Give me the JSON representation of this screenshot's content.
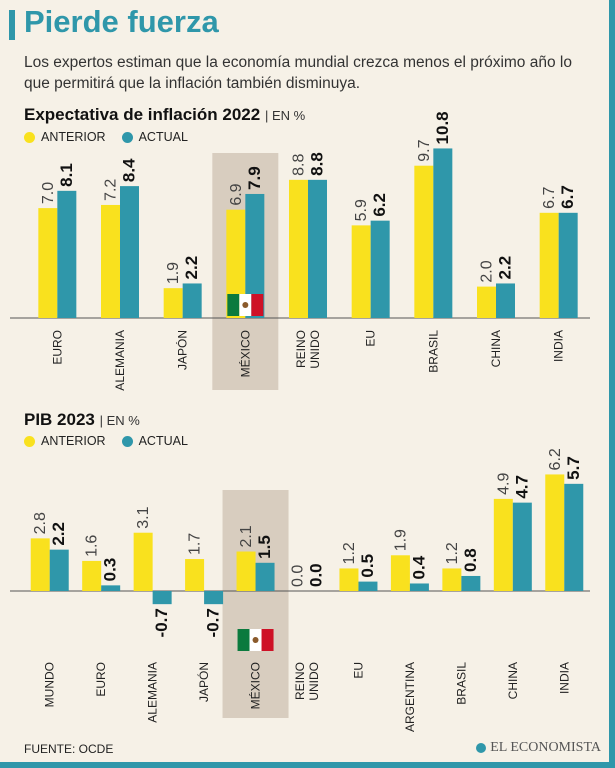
{
  "title": "Pierde fuerza",
  "subtitle": "Los expertos estiman que la economía mundial crezca menos el próximo año lo que permitirá que la inflación también disminuya.",
  "legend": {
    "anterior": "ANTERIOR",
    "actual": "ACTUAL"
  },
  "colors": {
    "anterior": "#f9e11e",
    "actual": "#2f97aa",
    "highlight": "#d8cdbf"
  },
  "highlight_category": "MÉXICO",
  "flag_icon": "mexico-flag-icon",
  "footer": "FUENTE:  OCDE",
  "brand": "EL ECONOMISTA",
  "chart_data": [
    {
      "type": "bar",
      "title": "Expectativa de inflación 2022",
      "unit": "EN %",
      "categories": [
        "EURO",
        "ALEMANIA",
        "JAPÓN",
        "MÉXICO",
        "REINO UNIDO",
        "EU",
        "BRASIL",
        "CHINA",
        "INDIA"
      ],
      "series": [
        {
          "name": "ANTERIOR",
          "values": [
            7.0,
            7.2,
            1.9,
            6.9,
            8.8,
            5.9,
            9.7,
            2.0,
            6.7
          ]
        },
        {
          "name": "ACTUAL",
          "values": [
            8.1,
            8.4,
            2.2,
            7.9,
            8.8,
            6.2,
            10.8,
            2.2,
            6.7
          ]
        }
      ]
    },
    {
      "type": "bar",
      "title": "PIB 2023",
      "unit": "EN %",
      "categories": [
        "MUNDO",
        "EURO",
        "ALEMANIA",
        "JAPÓN",
        "MÉXICO",
        "REINO UNIDO",
        "EU",
        "ARGENTINA",
        "BRASIL",
        "CHINA",
        "INDIA"
      ],
      "series": [
        {
          "name": "ANTERIOR",
          "values": [
            2.8,
            1.6,
            3.1,
            1.7,
            2.1,
            0.0,
            1.2,
            1.9,
            1.2,
            4.9,
            6.2
          ]
        },
        {
          "name": "ACTUAL",
          "values": [
            2.2,
            0.3,
            -0.7,
            -0.7,
            1.5,
            0.0,
            0.5,
            0.4,
            0.8,
            4.7,
            5.7
          ]
        }
      ]
    }
  ]
}
